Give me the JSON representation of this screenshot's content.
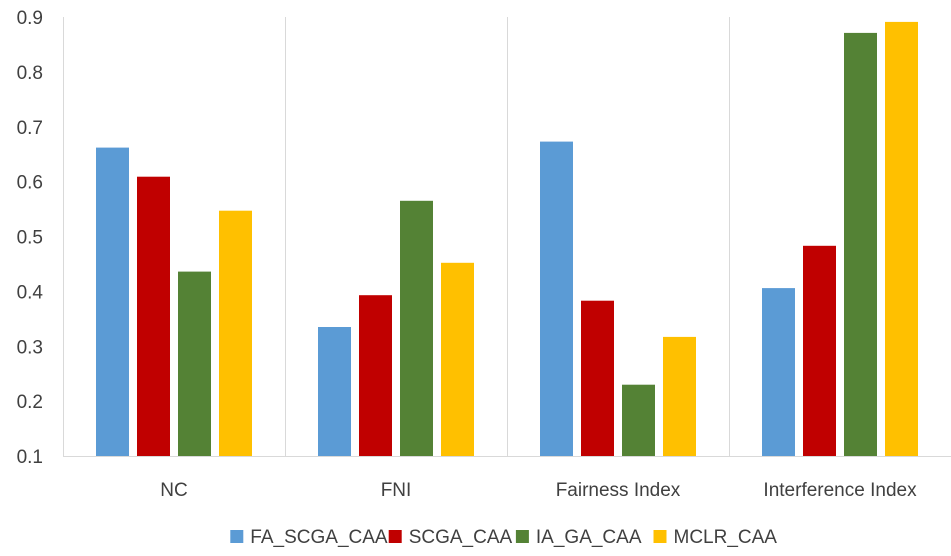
{
  "chart_data": {
    "type": "bar",
    "title": "",
    "xlabel": "",
    "ylabel": "",
    "categories": [
      "NC",
      "FNI",
      "Fairness Index",
      "Interference Index"
    ],
    "series": [
      {
        "name": "FA_SCGA_CAA",
        "color": "#5b9bd5",
        "values": [
          0.662,
          0.335,
          0.673,
          0.406
        ]
      },
      {
        "name": "SCGA_CAA",
        "color": "#c00000",
        "values": [
          0.609,
          0.393,
          0.383,
          0.483
        ]
      },
      {
        "name": "IA_GA_CAA",
        "color": "#548235",
        "values": [
          0.436,
          0.565,
          0.23,
          0.871
        ]
      },
      {
        "name": "MCLR_CAA",
        "color": "#ffc000",
        "values": [
          0.547,
          0.452,
          0.317,
          0.891
        ]
      }
    ],
    "ylim": [
      0.1,
      0.9
    ],
    "yticks": [
      "0.1",
      "0.2",
      "0.3",
      "0.4",
      "0.5",
      "0.6",
      "0.7",
      "0.8",
      "0.9"
    ],
    "grid": {
      "vertical_category_separators": true,
      "horizontal": false
    },
    "legend_position": "bottom"
  }
}
